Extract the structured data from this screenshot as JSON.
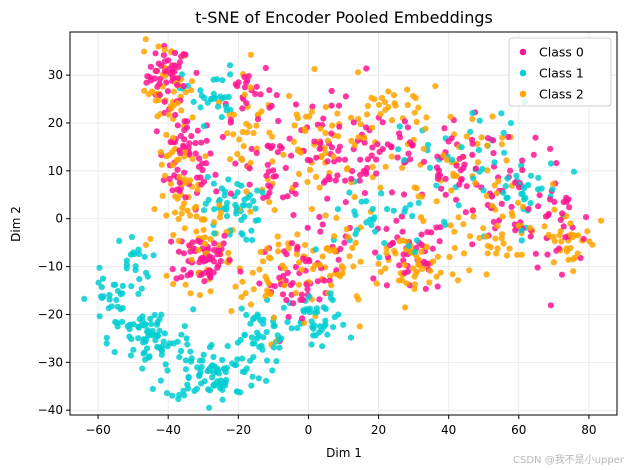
{
  "chart_data": {
    "type": "scatter",
    "title": "t-SNE of Encoder Pooled Embeddings",
    "xlabel": "Dim 1",
    "ylabel": "Dim 2",
    "xlim": [
      -68,
      88
    ],
    "ylim": [
      -41,
      39
    ],
    "xticks": [
      -60,
      -40,
      -20,
      0,
      20,
      40,
      60,
      80
    ],
    "yticks": [
      -40,
      -30,
      -20,
      -10,
      0,
      10,
      20,
      30
    ],
    "grid": true,
    "legend_position": "top-right",
    "series": [
      {
        "name": "Class 0",
        "color": "#ff1493",
        "clusters": [
          {
            "cx": -40,
            "cy": 30,
            "sx": 3,
            "sy": 3,
            "n": 45
          },
          {
            "cx": -35,
            "cy": 12,
            "sx": 4,
            "sy": 5,
            "n": 60
          },
          {
            "cx": -30,
            "cy": -8,
            "sx": 4,
            "sy": 3,
            "n": 60
          },
          {
            "cx": -18,
            "cy": 27,
            "sx": 4,
            "sy": 3,
            "n": 25
          },
          {
            "cx": -10,
            "cy": 10,
            "sx": 8,
            "sy": 6,
            "n": 45
          },
          {
            "cx": -2,
            "cy": -12,
            "sx": 6,
            "sy": 4,
            "n": 50
          },
          {
            "cx": 5,
            "cy": 8,
            "sx": 6,
            "sy": 8,
            "n": 45
          },
          {
            "cx": 20,
            "cy": 15,
            "sx": 8,
            "sy": 5,
            "n": 45
          },
          {
            "cx": 28,
            "cy": -8,
            "sx": 6,
            "sy": 4,
            "n": 40
          },
          {
            "cx": 45,
            "cy": 10,
            "sx": 8,
            "sy": 5,
            "n": 45
          },
          {
            "cx": 60,
            "cy": 5,
            "sx": 8,
            "sy": 5,
            "n": 40
          },
          {
            "cx": 72,
            "cy": -2,
            "sx": 5,
            "sy": 4,
            "n": 25
          }
        ]
      },
      {
        "name": "Class 1",
        "color": "#00ced1",
        "clusters": [
          {
            "cx": -57,
            "cy": -17,
            "sx": 3,
            "sy": 3,
            "n": 25
          },
          {
            "cx": -50,
            "cy": -9,
            "sx": 2.5,
            "sy": 3,
            "n": 20
          },
          {
            "cx": -45,
            "cy": -25,
            "sx": 6,
            "sy": 3,
            "n": 70
          },
          {
            "cx": -27,
            "cy": -32,
            "sx": 7,
            "sy": 3,
            "n": 90
          },
          {
            "cx": -15,
            "cy": -24,
            "sx": 5,
            "sy": 3,
            "n": 40
          },
          {
            "cx": -22,
            "cy": 2,
            "sx": 4,
            "sy": 3.5,
            "n": 50
          },
          {
            "cx": -28,
            "cy": 26,
            "sx": 4,
            "sy": 3,
            "n": 30
          },
          {
            "cx": 3,
            "cy": -22,
            "sx": 4,
            "sy": 3,
            "n": 40
          },
          {
            "cx": 20,
            "cy": 0,
            "sx": 8,
            "sy": 5,
            "n": 30
          },
          {
            "cx": 45,
            "cy": 12,
            "sx": 10,
            "sy": 6,
            "n": 40
          },
          {
            "cx": 60,
            "cy": 5,
            "sx": 6,
            "sy": 4,
            "n": 30
          }
        ]
      },
      {
        "name": "Class 2",
        "color": "#ffa500",
        "clusters": [
          {
            "cx": -40,
            "cy": 27,
            "sx": 4,
            "sy": 5,
            "n": 45
          },
          {
            "cx": -35,
            "cy": 5,
            "sx": 4,
            "sy": 6,
            "n": 40
          },
          {
            "cx": -30,
            "cy": -5,
            "sx": 4,
            "sy": 5,
            "n": 40
          },
          {
            "cx": -15,
            "cy": 15,
            "sx": 6,
            "sy": 8,
            "n": 45
          },
          {
            "cx": -10,
            "cy": -12,
            "sx": 6,
            "sy": 6,
            "n": 45
          },
          {
            "cx": 5,
            "cy": 15,
            "sx": 8,
            "sy": 6,
            "n": 55
          },
          {
            "cx": 8,
            "cy": -10,
            "sx": 6,
            "sy": 5,
            "n": 40
          },
          {
            "cx": 30,
            "cy": -10,
            "sx": 7,
            "sy": 4,
            "n": 55
          },
          {
            "cx": 40,
            "cy": 12,
            "sx": 8,
            "sy": 6,
            "n": 45
          },
          {
            "cx": 55,
            "cy": 0,
            "sx": 8,
            "sy": 5,
            "n": 45
          },
          {
            "cx": 75,
            "cy": -4,
            "sx": 4,
            "sy": 3,
            "n": 30
          },
          {
            "cx": 20,
            "cy": 22,
            "sx": 5,
            "sy": 3,
            "n": 25
          }
        ]
      }
    ]
  },
  "watermark": "CSDN @我不是小upper"
}
